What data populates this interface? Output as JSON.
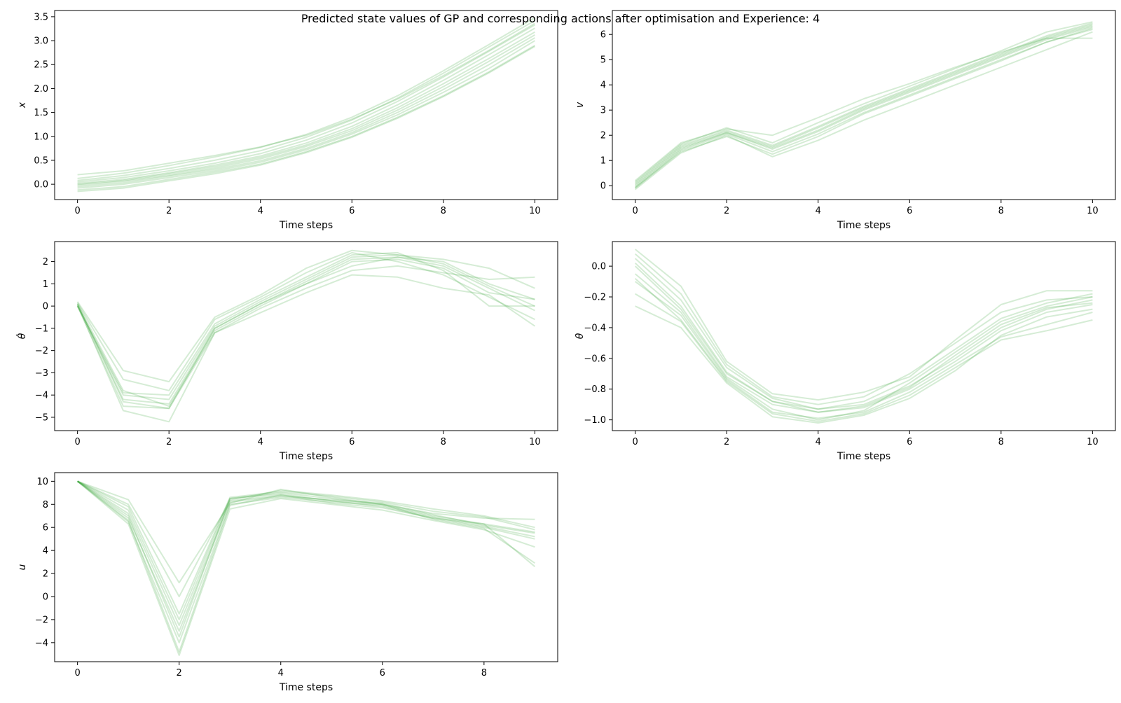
{
  "figure": {
    "title": "Predicted state values of GP and corresponding actions after optimisation and Experience: 4"
  },
  "line_color": "#2ca02c",
  "chart_data": [
    {
      "type": "line",
      "id": "x",
      "xlabel": "Time steps",
      "ylabel": "x",
      "xlim": [
        -0.5,
        10.5
      ],
      "ylim": [
        -0.32,
        3.63
      ],
      "xticks": [
        0,
        2,
        4,
        6,
        8,
        10
      ],
      "yticks": [
        0.0,
        0.5,
        1.0,
        1.5,
        2.0,
        2.5,
        3.0,
        3.5
      ],
      "ytick_labels": [
        "0.0",
        "0.5",
        "1.0",
        "1.5",
        "2.0",
        "2.5",
        "3.0",
        "3.5"
      ],
      "x": [
        0,
        1,
        2,
        3,
        4,
        5,
        6,
        7,
        8,
        9,
        10
      ],
      "series": [
        {
          "values": [
            -0.12,
            -0.05,
            0.1,
            0.25,
            0.42,
            0.68,
            1.0,
            1.4,
            1.85,
            2.35,
            2.9
          ]
        },
        {
          "values": [
            -0.08,
            0.0,
            0.14,
            0.28,
            0.46,
            0.72,
            1.05,
            1.45,
            1.92,
            2.42,
            3.0
          ]
        },
        {
          "values": [
            -0.05,
            0.03,
            0.17,
            0.31,
            0.49,
            0.75,
            1.08,
            1.5,
            1.98,
            2.5,
            3.06
          ]
        },
        {
          "values": [
            -0.02,
            0.06,
            0.19,
            0.34,
            0.53,
            0.79,
            1.12,
            1.55,
            2.04,
            2.57,
            3.12
          ]
        },
        {
          "values": [
            0.0,
            0.08,
            0.22,
            0.37,
            0.56,
            0.82,
            1.16,
            1.6,
            2.1,
            2.63,
            3.18
          ]
        },
        {
          "values": [
            0.02,
            0.1,
            0.24,
            0.4,
            0.59,
            0.86,
            1.21,
            1.66,
            2.17,
            2.71,
            3.26
          ]
        },
        {
          "values": [
            0.05,
            0.14,
            0.28,
            0.44,
            0.64,
            0.92,
            1.28,
            1.73,
            2.24,
            2.78,
            3.33
          ]
        },
        {
          "values": [
            0.08,
            0.18,
            0.33,
            0.5,
            0.7,
            0.98,
            1.34,
            1.8,
            2.32,
            2.87,
            3.42
          ]
        },
        {
          "values": [
            0.12,
            0.23,
            0.39,
            0.57,
            0.77,
            1.04,
            1.4,
            1.85,
            2.37,
            2.92,
            3.48
          ]
        },
        {
          "values": [
            0.2,
            0.28,
            0.44,
            0.6,
            0.78,
            1.02,
            1.36,
            1.78,
            2.27,
            2.8,
            3.36
          ]
        },
        {
          "values": [
            -0.15,
            -0.08,
            0.07,
            0.22,
            0.4,
            0.66,
            0.98,
            1.38,
            1.83,
            2.33,
            2.88
          ]
        }
      ]
    },
    {
      "type": "line",
      "id": "v",
      "xlabel": "Time steps",
      "ylabel": "v",
      "xlim": [
        -0.5,
        10.5
      ],
      "ylim": [
        -0.55,
        6.95
      ],
      "xticks": [
        0,
        2,
        4,
        6,
        8,
        10
      ],
      "yticks": [
        0,
        1,
        2,
        3,
        4,
        5,
        6
      ],
      "ytick_labels": [
        "0",
        "1",
        "2",
        "3",
        "4",
        "5",
        "6"
      ],
      "x": [
        0,
        1,
        2,
        3,
        4,
        5,
        6,
        7,
        8,
        9,
        10
      ],
      "series": [
        {
          "values": [
            -0.15,
            1.3,
            2.0,
            1.15,
            1.8,
            2.6,
            3.3,
            4.0,
            4.7,
            5.4,
            6.1
          ]
        },
        {
          "values": [
            -0.1,
            1.4,
            2.05,
            1.35,
            2.05,
            2.9,
            3.6,
            4.3,
            5.0,
            5.7,
            6.2
          ]
        },
        {
          "values": [
            -0.05,
            1.45,
            2.1,
            1.45,
            2.15,
            3.0,
            3.7,
            4.4,
            5.1,
            5.8,
            6.3
          ]
        },
        {
          "values": [
            0.0,
            1.5,
            2.1,
            1.5,
            2.2,
            3.05,
            3.75,
            4.45,
            5.15,
            5.85,
            6.35
          ]
        },
        {
          "values": [
            0.05,
            1.55,
            2.15,
            1.55,
            2.3,
            3.1,
            3.8,
            4.5,
            5.2,
            5.9,
            6.4
          ]
        },
        {
          "values": [
            0.1,
            1.6,
            2.2,
            1.6,
            2.35,
            3.15,
            3.85,
            4.55,
            5.25,
            5.95,
            6.45
          ]
        },
        {
          "values": [
            0.15,
            1.65,
            2.3,
            1.7,
            2.5,
            3.25,
            3.95,
            4.65,
            5.35,
            6.1,
            6.5
          ]
        },
        {
          "values": [
            0.2,
            1.7,
            2.25,
            2.0,
            2.7,
            3.45,
            4.05,
            4.7,
            5.3,
            5.85,
            5.85
          ]
        },
        {
          "values": [
            -0.08,
            1.35,
            1.95,
            1.25,
            1.95,
            2.85,
            3.55,
            4.25,
            4.95,
            5.7,
            6.25
          ]
        }
      ]
    },
    {
      "type": "line",
      "id": "theta_dot",
      "xlabel": "Time steps",
      "ylabel": "θ̇",
      "xlim": [
        -0.5,
        10.5
      ],
      "ylim": [
        -5.6,
        2.9
      ],
      "xticks": [
        0,
        2,
        4,
        6,
        8,
        10
      ],
      "yticks": [
        -5,
        -4,
        -3,
        -2,
        -1,
        0,
        1,
        2
      ],
      "ytick_labels": [
        "−5",
        "−4",
        "−3",
        "−2",
        "−1",
        "0",
        "1",
        "2"
      ],
      "x": [
        0,
        1,
        2,
        3,
        4,
        5,
        6,
        7,
        8,
        9,
        10
      ],
      "series": [
        {
          "values": [
            0.05,
            -4.2,
            -4.4,
            -1.0,
            0.1,
            1.1,
            2.1,
            2.2,
            1.8,
            0.8,
            -0.2
          ]
        },
        {
          "values": [
            0.0,
            -4.0,
            -4.2,
            -0.9,
            0.2,
            1.2,
            2.2,
            2.3,
            1.9,
            0.9,
            0.0
          ]
        },
        {
          "values": [
            0.1,
            -3.8,
            -4.5,
            -1.1,
            0.0,
            1.0,
            2.0,
            2.1,
            1.7,
            0.6,
            0.3
          ]
        },
        {
          "values": [
            0.0,
            -3.9,
            -4.0,
            -0.8,
            0.3,
            1.3,
            2.3,
            2.4,
            1.6,
            0.0,
            0.0
          ]
        },
        {
          "values": [
            0.15,
            -3.3,
            -3.8,
            -0.6,
            0.4,
            1.5,
            2.4,
            2.0,
            1.4,
            0.4,
            -0.6
          ]
        },
        {
          "values": [
            0.2,
            -2.9,
            -3.4,
            -0.5,
            0.5,
            1.7,
            2.5,
            2.3,
            2.1,
            1.7,
            0.8
          ]
        },
        {
          "values": [
            0.0,
            -4.5,
            -4.6,
            -1.2,
            -0.1,
            0.8,
            1.6,
            1.8,
            1.5,
            1.2,
            1.3
          ]
        },
        {
          "values": [
            0.05,
            -4.7,
            -5.2,
            -1.2,
            -0.3,
            0.6,
            1.4,
            1.3,
            0.8,
            0.5,
            -0.9
          ]
        },
        {
          "values": [
            0.1,
            -4.3,
            -4.6,
            -1.0,
            0.1,
            1.0,
            1.8,
            2.2,
            2.0,
            1.0,
            0.3
          ]
        }
      ]
    },
    {
      "type": "line",
      "id": "theta",
      "xlabel": "Time steps",
      "ylabel": "θ",
      "xlim": [
        -0.5,
        10.5
      ],
      "ylim": [
        -1.07,
        0.16
      ],
      "xticks": [
        0,
        2,
        4,
        6,
        8,
        10
      ],
      "yticks": [
        -1.0,
        -0.8,
        -0.6,
        -0.4,
        -0.2,
        0.0
      ],
      "ytick_labels": [
        "−1.0",
        "−0.8",
        "−0.6",
        "−0.4",
        "−0.2",
        "0.0"
      ],
      "x": [
        0,
        1,
        2,
        3,
        4,
        5,
        6,
        7,
        8,
        9,
        10
      ],
      "series": [
        {
          "values": [
            0.0,
            -0.28,
            -0.7,
            -0.88,
            -0.93,
            -0.9,
            -0.78,
            -0.6,
            -0.4,
            -0.28,
            -0.22
          ]
        },
        {
          "values": [
            -0.05,
            -0.3,
            -0.72,
            -0.9,
            -0.95,
            -0.92,
            -0.8,
            -0.62,
            -0.42,
            -0.3,
            -0.25
          ]
        },
        {
          "values": [
            -0.1,
            -0.32,
            -0.73,
            -0.93,
            -1.0,
            -0.94,
            -0.76,
            -0.56,
            -0.36,
            -0.26,
            -0.2
          ]
        },
        {
          "values": [
            0.05,
            -0.22,
            -0.66,
            -0.86,
            -0.93,
            -0.88,
            -0.74,
            -0.54,
            -0.34,
            -0.24,
            -0.18
          ]
        },
        {
          "values": [
            0.08,
            -0.18,
            -0.64,
            -0.85,
            -0.9,
            -0.85,
            -0.7,
            -0.5,
            -0.3,
            -0.22,
            -0.2
          ]
        },
        {
          "values": [
            0.11,
            -0.13,
            -0.62,
            -0.83,
            -0.87,
            -0.82,
            -0.72,
            -0.48,
            -0.25,
            -0.16,
            -0.16
          ]
        },
        {
          "values": [
            -0.08,
            -0.35,
            -0.74,
            -0.95,
            -0.99,
            -0.95,
            -0.82,
            -0.64,
            -0.46,
            -0.38,
            -0.3
          ]
        },
        {
          "values": [
            -0.18,
            -0.36,
            -0.75,
            -0.96,
            -1.01,
            -0.96,
            -0.84,
            -0.66,
            -0.48,
            -0.42,
            -0.35
          ]
        },
        {
          "values": [
            -0.26,
            -0.4,
            -0.76,
            -0.98,
            -1.02,
            -0.97,
            -0.86,
            -0.68,
            -0.45,
            -0.33,
            -0.28
          ]
        },
        {
          "values": [
            0.02,
            -0.26,
            -0.69,
            -0.88,
            -0.95,
            -0.91,
            -0.79,
            -0.58,
            -0.38,
            -0.27,
            -0.24
          ]
        }
      ]
    },
    {
      "type": "line",
      "id": "u",
      "xlabel": "Time steps",
      "ylabel": "u",
      "xlim": [
        -0.45,
        9.45
      ],
      "ylim": [
        -5.65,
        10.75
      ],
      "xticks": [
        0,
        2,
        4,
        6,
        8
      ],
      "yticks": [
        -4,
        -2,
        0,
        2,
        4,
        6,
        8,
        10
      ],
      "ytick_labels": [
        "−4",
        "−2",
        "0",
        "2",
        "4",
        "6",
        "8",
        "10"
      ],
      "x": [
        0,
        1,
        2,
        3,
        4,
        5,
        6,
        7,
        8,
        9
      ],
      "series": [
        {
          "values": [
            10.0,
            7.5,
            -2.0,
            8.5,
            9.0,
            8.5,
            8.0,
            7.0,
            6.3,
            2.6
          ]
        },
        {
          "values": [
            10.0,
            7.2,
            -2.5,
            8.3,
            8.8,
            8.3,
            7.8,
            6.8,
            6.0,
            5.0
          ]
        },
        {
          "values": [
            10.0,
            6.8,
            -3.0,
            8.2,
            8.7,
            8.4,
            8.1,
            7.1,
            6.2,
            5.5
          ]
        },
        {
          "values": [
            10.0,
            6.5,
            -4.0,
            8.0,
            8.6,
            8.2,
            7.9,
            6.9,
            6.1,
            5.2
          ]
        },
        {
          "values": [
            10.0,
            6.3,
            -5.1,
            7.6,
            8.5,
            8.0,
            7.5,
            6.6,
            5.8,
            4.3
          ]
        },
        {
          "values": [
            10.0,
            7.8,
            -1.5,
            8.6,
            9.1,
            8.7,
            8.2,
            7.4,
            6.9,
            5.8
          ]
        },
        {
          "values": [
            10.0,
            8.0,
            0.0,
            8.4,
            9.2,
            8.8,
            8.3,
            7.6,
            7.0,
            6.0
          ]
        },
        {
          "values": [
            10.0,
            8.4,
            1.2,
            8.1,
            9.3,
            8.6,
            8.0,
            7.2,
            6.8,
            6.7
          ]
        },
        {
          "values": [
            10.0,
            7.0,
            -3.5,
            8.5,
            8.9,
            8.3,
            8.0,
            6.7,
            5.9,
            2.9
          ]
        },
        {
          "values": [
            10.0,
            6.6,
            -4.8,
            7.9,
            8.8,
            8.1,
            7.7,
            6.8,
            6.3,
            5.6
          ]
        }
      ]
    }
  ]
}
